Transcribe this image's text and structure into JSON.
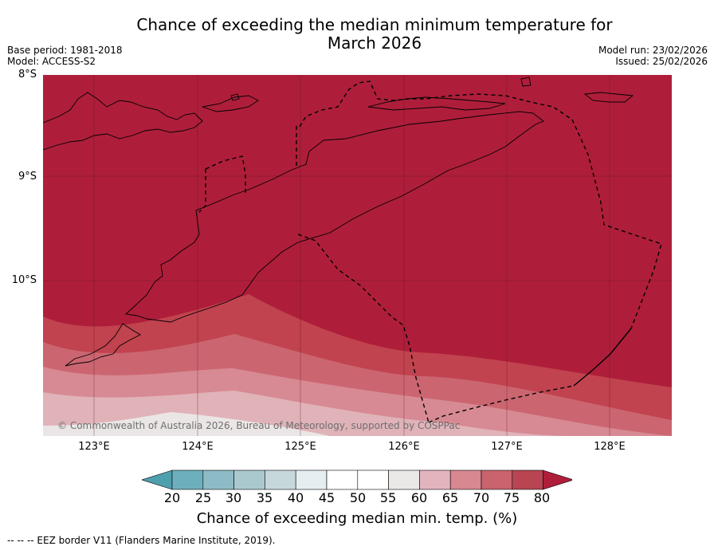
{
  "title": {
    "line1": "Chance of exceeding the median minimum temperature for",
    "line2": "March 2026"
  },
  "meta_left": {
    "base_period": "Base period: 1981-2018",
    "model": "Model: ACCESS-S2"
  },
  "meta_right": {
    "model_run": "Model run: 23/02/2026",
    "issued": "Issued: 25/02/2026"
  },
  "map": {
    "lat_labels": [
      "8°S",
      "9°S",
      "10°S"
    ],
    "lon_labels": [
      "123°E",
      "124°E",
      "125°E",
      "126°E",
      "127°E",
      "128°E"
    ],
    "copyright": "© Commonwealth of Australia 2026, Bureau of Meteorology, supported by COSPPac",
    "region_classes_percent": [
      ">80",
      "75-80",
      "70-75",
      "65-70",
      "60-65",
      "55-60"
    ]
  },
  "colorbar": {
    "ticks": [
      "20",
      "25",
      "30",
      "35",
      "40",
      "45",
      "50",
      "55",
      "60",
      "65",
      "70",
      "75",
      "80"
    ],
    "colors": [
      "#4e9fae",
      "#6eafbd",
      "#8dbcc6",
      "#a9c9cf",
      "#c7d8dd",
      "#e6eef1",
      "#ffffff",
      "#ffffff",
      "#ebe8e8",
      "#e2b4be",
      "#d78890",
      "#c9636e",
      "#b94452",
      "#ae1e3a"
    ],
    "label": "Chance of exceeding median min. temp. (%)"
  },
  "footnote": "--  --  -- EEZ border V11 (Flanders Marine Institute, 2019)."
}
